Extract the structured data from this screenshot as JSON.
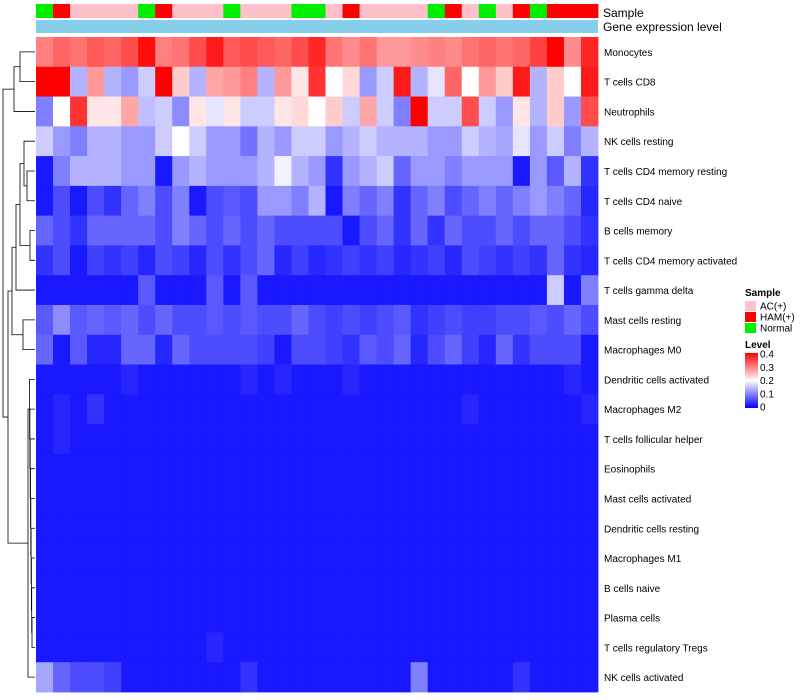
{
  "chart_data": {
    "type": "heatmap",
    "annotations": {
      "sample_label": "Sample",
      "gene_label": "Gene expression level",
      "sample_order": [
        "Normal",
        "HAM(+)",
        "AC(+)",
        "AC(+)",
        "AC(+)",
        "AC(+)",
        "Normal",
        "HAM(+)",
        "AC(+)",
        "AC(+)",
        "AC(+)",
        "Normal",
        "AC(+)",
        "AC(+)",
        "AC(+)",
        "Normal",
        "Normal",
        "AC(+)",
        "HAM(+)",
        "AC(+)",
        "AC(+)",
        "AC(+)",
        "AC(+)",
        "Normal",
        "HAM(+)",
        "AC(+)",
        "Normal",
        "AC(+)",
        "HAM(+)",
        "Normal",
        "HAM(+)",
        "HAM(+)",
        "HAM(+)"
      ]
    },
    "rows": [
      "Monocytes",
      "T cells CD8",
      "Neutrophils",
      "NK cells resting",
      "T cells CD4 memory resting",
      "T cells CD4 naive",
      "B cells memory",
      "T cells CD4 memory activated",
      "T cells gamma delta",
      "Mast cells resting",
      "Macrophages M0",
      "Dendritic cells activated",
      "Macrophages M2",
      "T cells follicular helper",
      "Eosinophils",
      "Mast cells activated",
      "Dendritic cells resting",
      "Macrophages M1",
      "B cells naive",
      "Plasma cells",
      "T cells regulatory  Tregs",
      "NK cells activated"
    ],
    "values": [
      [
        0.3,
        0.32,
        0.31,
        0.33,
        0.32,
        0.34,
        0.39,
        0.3,
        0.31,
        0.34,
        0.38,
        0.33,
        0.34,
        0.33,
        0.32,
        0.34,
        0.37,
        0.31,
        0.29,
        0.31,
        0.28,
        0.28,
        0.29,
        0.3,
        0.29,
        0.31,
        0.32,
        0.31,
        0.32,
        0.35,
        0.4,
        0.29,
        0.37
      ],
      [
        0.4,
        0.4,
        0.14,
        0.28,
        0.14,
        0.12,
        0.16,
        0.4,
        0.24,
        0.14,
        0.27,
        0.28,
        0.3,
        0.14,
        0.28,
        0.22,
        0.36,
        0.2,
        0.23,
        0.12,
        0.16,
        0.38,
        0.14,
        0.18,
        0.32,
        0.2,
        0.28,
        0.24,
        0.38,
        0.14,
        0.24,
        0.2,
        0.38
      ],
      [
        0.1,
        0.2,
        0.36,
        0.22,
        0.22,
        0.27,
        0.15,
        0.16,
        0.11,
        0.22,
        0.18,
        0.22,
        0.16,
        0.16,
        0.22,
        0.23,
        0.2,
        0.24,
        0.16,
        0.27,
        0.16,
        0.1,
        0.4,
        0.16,
        0.16,
        0.34,
        0.16,
        0.12,
        0.22,
        0.14,
        0.24,
        0.12,
        0.34
      ],
      [
        0.16,
        0.12,
        0.1,
        0.14,
        0.14,
        0.12,
        0.12,
        0.16,
        0.2,
        0.16,
        0.12,
        0.12,
        0.09,
        0.14,
        0.12,
        0.16,
        0.16,
        0.12,
        0.14,
        0.16,
        0.14,
        0.14,
        0.14,
        0.12,
        0.12,
        0.16,
        0.14,
        0.13,
        0.18,
        0.12,
        0.16,
        0.1,
        0.14
      ],
      [
        0.02,
        0.1,
        0.14,
        0.14,
        0.14,
        0.12,
        0.12,
        0.02,
        0.12,
        0.14,
        0.12,
        0.12,
        0.12,
        0.14,
        0.19,
        0.14,
        0.12,
        0.04,
        0.12,
        0.14,
        0.16,
        0.08,
        0.12,
        0.12,
        0.1,
        0.12,
        0.12,
        0.12,
        0.02,
        0.12,
        0.07,
        0.14,
        0.04
      ],
      [
        0.02,
        0.06,
        0.02,
        0.06,
        0.04,
        0.08,
        0.1,
        0.06,
        0.1,
        0.02,
        0.06,
        0.07,
        0.06,
        0.12,
        0.12,
        0.1,
        0.14,
        0.02,
        0.1,
        0.08,
        0.1,
        0.04,
        0.08,
        0.1,
        0.06,
        0.08,
        0.1,
        0.08,
        0.1,
        0.12,
        0.1,
        0.08,
        0.03
      ],
      [
        0.08,
        0.06,
        0.04,
        0.08,
        0.08,
        0.08,
        0.08,
        0.06,
        0.1,
        0.08,
        0.06,
        0.08,
        0.06,
        0.08,
        0.06,
        0.06,
        0.06,
        0.06,
        0.02,
        0.06,
        0.08,
        0.04,
        0.08,
        0.04,
        0.08,
        0.06,
        0.06,
        0.08,
        0.06,
        0.08,
        0.08,
        0.06,
        0.04
      ],
      [
        0.04,
        0.06,
        0.02,
        0.05,
        0.04,
        0.05,
        0.03,
        0.06,
        0.05,
        0.03,
        0.06,
        0.04,
        0.06,
        0.08,
        0.03,
        0.05,
        0.03,
        0.04,
        0.05,
        0.04,
        0.05,
        0.03,
        0.04,
        0.05,
        0.03,
        0.06,
        0.05,
        0.04,
        0.05,
        0.04,
        0.08,
        0.04,
        0.03
      ],
      [
        0.02,
        0.02,
        0.02,
        0.02,
        0.02,
        0.02,
        0.07,
        0.02,
        0.02,
        0.02,
        0.07,
        0.02,
        0.07,
        0.02,
        0.02,
        0.02,
        0.02,
        0.02,
        0.02,
        0.02,
        0.02,
        0.02,
        0.02,
        0.02,
        0.02,
        0.02,
        0.02,
        0.02,
        0.02,
        0.02,
        0.16,
        0.02,
        0.1
      ],
      [
        0.07,
        0.11,
        0.07,
        0.08,
        0.07,
        0.08,
        0.06,
        0.08,
        0.06,
        0.06,
        0.07,
        0.06,
        0.07,
        0.06,
        0.06,
        0.08,
        0.06,
        0.05,
        0.06,
        0.05,
        0.06,
        0.07,
        0.04,
        0.05,
        0.06,
        0.05,
        0.05,
        0.06,
        0.06,
        0.07,
        0.06,
        0.08,
        0.06
      ],
      [
        0.08,
        0.02,
        0.07,
        0.03,
        0.03,
        0.08,
        0.08,
        0.03,
        0.08,
        0.06,
        0.06,
        0.06,
        0.06,
        0.05,
        0.02,
        0.06,
        0.06,
        0.05,
        0.04,
        0.07,
        0.06,
        0.08,
        0.03,
        0.06,
        0.08,
        0.05,
        0.03,
        0.08,
        0.04,
        0.06,
        0.06,
        0.06,
        0.02
      ],
      [
        0.02,
        0.02,
        0.02,
        0.02,
        0.02,
        0.03,
        0.02,
        0.02,
        0.02,
        0.02,
        0.02,
        0.02,
        0.03,
        0.02,
        0.03,
        0.02,
        0.02,
        0.02,
        0.03,
        0.02,
        0.02,
        0.02,
        0.02,
        0.02,
        0.02,
        0.02,
        0.02,
        0.02,
        0.02,
        0.02,
        0.02,
        0.03,
        0.02
      ],
      [
        0.02,
        0.03,
        0.02,
        0.04,
        0.02,
        0.02,
        0.02,
        0.02,
        0.02,
        0.02,
        0.02,
        0.02,
        0.02,
        0.02,
        0.02,
        0.02,
        0.02,
        0.02,
        0.02,
        0.02,
        0.02,
        0.02,
        0.02,
        0.02,
        0.02,
        0.03,
        0.02,
        0.02,
        0.02,
        0.02,
        0.02,
        0.02,
        0.03
      ],
      [
        0.02,
        0.03,
        0.02,
        0.02,
        0.02,
        0.02,
        0.02,
        0.02,
        0.02,
        0.02,
        0.02,
        0.02,
        0.02,
        0.02,
        0.02,
        0.02,
        0.02,
        0.02,
        0.02,
        0.02,
        0.02,
        0.02,
        0.02,
        0.02,
        0.02,
        0.02,
        0.02,
        0.02,
        0.02,
        0.02,
        0.02,
        0.02,
        0.02
      ],
      [
        0.02,
        0.02,
        0.02,
        0.02,
        0.02,
        0.02,
        0.02,
        0.02,
        0.02,
        0.02,
        0.02,
        0.02,
        0.02,
        0.02,
        0.02,
        0.02,
        0.02,
        0.02,
        0.02,
        0.02,
        0.02,
        0.02,
        0.02,
        0.02,
        0.02,
        0.02,
        0.02,
        0.02,
        0.02,
        0.02,
        0.02,
        0.02,
        0.02
      ],
      [
        0.02,
        0.02,
        0.02,
        0.02,
        0.02,
        0.02,
        0.02,
        0.02,
        0.02,
        0.02,
        0.02,
        0.02,
        0.02,
        0.02,
        0.02,
        0.02,
        0.02,
        0.02,
        0.02,
        0.02,
        0.02,
        0.02,
        0.02,
        0.02,
        0.02,
        0.02,
        0.02,
        0.02,
        0.02,
        0.02,
        0.02,
        0.02,
        0.02
      ],
      [
        0.02,
        0.02,
        0.02,
        0.02,
        0.02,
        0.02,
        0.02,
        0.02,
        0.02,
        0.02,
        0.02,
        0.02,
        0.02,
        0.02,
        0.02,
        0.02,
        0.02,
        0.02,
        0.02,
        0.02,
        0.02,
        0.02,
        0.02,
        0.02,
        0.02,
        0.02,
        0.02,
        0.02,
        0.02,
        0.02,
        0.02,
        0.02,
        0.02
      ],
      [
        0.02,
        0.02,
        0.02,
        0.02,
        0.02,
        0.02,
        0.02,
        0.02,
        0.02,
        0.02,
        0.02,
        0.02,
        0.02,
        0.02,
        0.02,
        0.02,
        0.02,
        0.02,
        0.02,
        0.02,
        0.02,
        0.02,
        0.02,
        0.02,
        0.02,
        0.02,
        0.02,
        0.02,
        0.02,
        0.02,
        0.02,
        0.02,
        0.02
      ],
      [
        0.02,
        0.02,
        0.02,
        0.02,
        0.02,
        0.02,
        0.02,
        0.02,
        0.02,
        0.02,
        0.02,
        0.02,
        0.02,
        0.02,
        0.02,
        0.02,
        0.02,
        0.02,
        0.02,
        0.02,
        0.02,
        0.02,
        0.02,
        0.02,
        0.02,
        0.02,
        0.02,
        0.02,
        0.02,
        0.02,
        0.02,
        0.02,
        0.02
      ],
      [
        0.02,
        0.02,
        0.02,
        0.02,
        0.02,
        0.02,
        0.02,
        0.02,
        0.02,
        0.02,
        0.02,
        0.02,
        0.02,
        0.02,
        0.02,
        0.02,
        0.02,
        0.02,
        0.02,
        0.02,
        0.02,
        0.02,
        0.02,
        0.02,
        0.02,
        0.02,
        0.02,
        0.02,
        0.02,
        0.02,
        0.02,
        0.02,
        0.02
      ],
      [
        0.02,
        0.02,
        0.02,
        0.02,
        0.02,
        0.02,
        0.02,
        0.02,
        0.02,
        0.02,
        0.03,
        0.02,
        0.02,
        0.02,
        0.02,
        0.02,
        0.02,
        0.02,
        0.02,
        0.02,
        0.02,
        0.02,
        0.02,
        0.02,
        0.02,
        0.02,
        0.02,
        0.02,
        0.02,
        0.02,
        0.02,
        0.02,
        0.02
      ],
      [
        0.13,
        0.08,
        0.06,
        0.06,
        0.05,
        0.02,
        0.02,
        0.02,
        0.02,
        0.02,
        0.02,
        0.02,
        0.04,
        0.02,
        0.02,
        0.02,
        0.02,
        0.02,
        0.02,
        0.02,
        0.02,
        0.02,
        0.1,
        0.02,
        0.02,
        0.02,
        0.02,
        0.02,
        0.04,
        0.02,
        0.02,
        0.02,
        0.02
      ]
    ],
    "scale": {
      "min": 0,
      "max": 0.4,
      "low_color": "#0000ff",
      "mid_color": "#ffffff",
      "high_color": "#ff0000",
      "mid_value": 0.2
    },
    "legend": {
      "position": "right",
      "sample_title": "Sample",
      "sample_items": [
        {
          "label": "AC(+)",
          "color": "#ffc0cb"
        },
        {
          "label": "HAM(+)",
          "color": "#ff0000"
        },
        {
          "label": "Normal",
          "color": "#00ee00"
        }
      ],
      "level_title": "Level",
      "level_ticks": [
        "0.4",
        "0.3",
        "0.2",
        "0.1",
        "0"
      ]
    },
    "gene_bar_color": "#87ceeb"
  }
}
